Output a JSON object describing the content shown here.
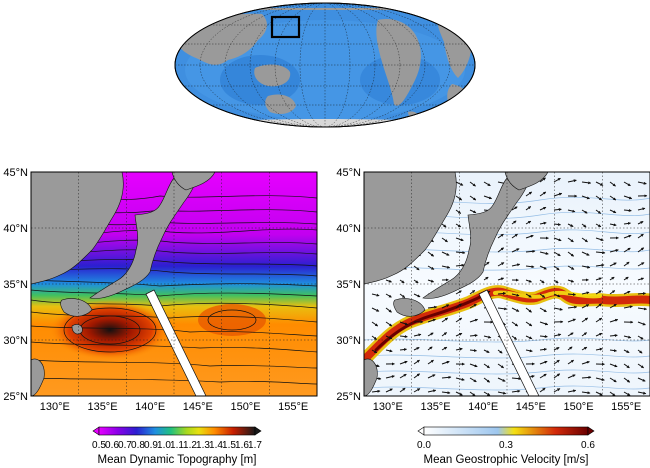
{
  "colors": {
    "land": "#9a9a9a",
    "ocean_world": "#3f8fe0",
    "grid": "#222222",
    "box": "#000000",
    "section_line": "#ffffff"
  },
  "left_map": {
    "lat_ticks": [
      "45°N",
      "40°N",
      "35°N",
      "30°N",
      "25°N"
    ],
    "lon_ticks": [
      "130°E",
      "135°E",
      "140°E",
      "145°E",
      "150°E",
      "155°E"
    ],
    "colorbar_ticks": [
      "0.5",
      "0.6",
      "0.7",
      "0.8",
      "0.9",
      "1.0",
      "1.1",
      "1.2",
      "1.3",
      "1.4",
      "1.5",
      "1.6",
      "1.7"
    ],
    "colorbar_label": "Mean Dynamic Topography [m]"
  },
  "right_map": {
    "lat_ticks": [
      "45°N",
      "40°N",
      "35°N",
      "30°N",
      "25°N"
    ],
    "lon_ticks": [
      "130°E",
      "135°E",
      "140°E",
      "145°E",
      "150°E",
      "155°E"
    ],
    "colorbar_ticks": [
      "0.0",
      "0.3",
      "0.6"
    ],
    "colorbar_label": "Mean Geostrophic Velocity [m/s]"
  },
  "chart_data": {
    "type": "map",
    "panels": [
      {
        "name": "globe-inset",
        "projection": "mollweide",
        "highlight_box": {
          "lon": [
            125,
            157
          ],
          "lat": [
            25,
            45
          ]
        }
      },
      {
        "name": "mdt",
        "lon_range": [
          127,
          157
        ],
        "lat_range": [
          25,
          45
        ],
        "colormap": [
          "#e600ff",
          "#2b1fd0",
          "#1f8fe0",
          "#20c080",
          "#e8e010",
          "#ff8c00",
          "#c81e00",
          "#1a1a1a"
        ],
        "value_range": [
          0.5,
          1.7
        ]
      },
      {
        "name": "velocity",
        "lon_range": [
          127,
          157
        ],
        "lat_range": [
          25,
          45
        ],
        "colormap": [
          "#ffffff",
          "#9dc6ee",
          "#f4e012",
          "#d32a0a",
          "#6a0000"
        ],
        "value_range": [
          0.0,
          0.6
        ]
      }
    ],
    "section_line": {
      "lon": [
        140,
        145
      ],
      "lat": [
        34.5,
        25
      ]
    }
  }
}
